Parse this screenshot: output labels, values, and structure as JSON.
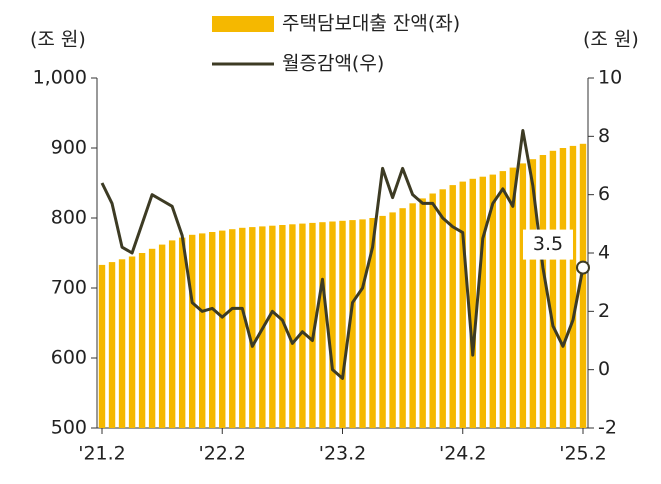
{
  "chart_data": {
    "type": "combo",
    "y_label": "(조 원)",
    "y2_label": "(조 원)",
    "categories": [
      "'21.2",
      null,
      null,
      null,
      null,
      null,
      null,
      null,
      null,
      null,
      null,
      null,
      "'22.2",
      null,
      null,
      null,
      null,
      null,
      null,
      null,
      null,
      null,
      null,
      null,
      "'23.2",
      null,
      null,
      null,
      null,
      null,
      null,
      null,
      null,
      null,
      null,
      null,
      "'24.2",
      null,
      null,
      null,
      null,
      null,
      null,
      null,
      null,
      null,
      null,
      null,
      "'25.2"
    ],
    "series": [
      {
        "name": "주택담보대출 잔액(좌)",
        "type": "bar",
        "color": "#f5b800",
        "axis": "y",
        "values": [
          733,
          737,
          741,
          745,
          750,
          756,
          762,
          768,
          772,
          776,
          778,
          780,
          782,
          784,
          786,
          787,
          788,
          789,
          790,
          791,
          792,
          793,
          794,
          795,
          796,
          797,
          798,
          800,
          803,
          808,
          814,
          821,
          828,
          835,
          841,
          847,
          852,
          856,
          859,
          862,
          867,
          872,
          878,
          884,
          890,
          896,
          900,
          903,
          906
        ]
      },
      {
        "name": "월증감액(우)",
        "type": "line",
        "color": "#3d3b24",
        "axis": "y2",
        "values": [
          6.4,
          5.7,
          4.2,
          4.0,
          5.0,
          6.0,
          5.8,
          5.6,
          4.6,
          2.3,
          2.0,
          2.1,
          1.8,
          2.1,
          2.1,
          0.8,
          1.4,
          2.0,
          1.7,
          0.9,
          1.3,
          1.0,
          3.1,
          0.0,
          -0.3,
          2.3,
          2.8,
          4.2,
          6.9,
          5.9,
          6.9,
          6.0,
          5.7,
          5.7,
          5.2,
          4.9,
          4.7,
          0.5,
          4.5,
          5.7,
          6.2,
          5.6,
          8.2,
          6.3,
          3.5,
          1.5,
          0.8,
          1.7,
          3.5
        ]
      }
    ],
    "ylim": [
      500,
      1000
    ],
    "yticks": [
      500,
      600,
      700,
      800,
      900,
      {
        "value": 1000,
        "label": "1,000"
      }
    ],
    "y2lim": [
      -2,
      10
    ],
    "y2ticks": [
      -2,
      0,
      2,
      4,
      6,
      8,
      10
    ]
  }
}
